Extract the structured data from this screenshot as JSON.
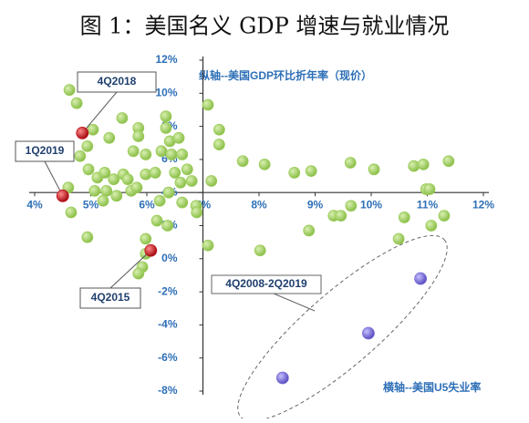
{
  "chart_data": {
    "type": "scatter",
    "title": "图 1：美国名义 GDP 增速与就业情况",
    "y_axis_label": "纵轴--美国GDP环比折年率（现价）",
    "x_axis_label": "横轴--美国U5失业率",
    "xlim": [
      4,
      12
    ],
    "ylim": [
      -8,
      12
    ],
    "xticks": [
      {
        "value": 4,
        "label": "4%"
      },
      {
        "value": 5,
        "label": "5%"
      },
      {
        "value": 6,
        "label": "6%"
      },
      {
        "value": 7,
        "label": "7%"
      },
      {
        "value": 8,
        "label": "8%"
      },
      {
        "value": 9,
        "label": "9%"
      },
      {
        "value": 10,
        "label": "10%"
      },
      {
        "value": 11,
        "label": "11%"
      },
      {
        "value": 12,
        "label": "12%"
      }
    ],
    "yticks": [
      {
        "value": -8,
        "label": "-8%"
      },
      {
        "value": -6,
        "label": "-6%"
      },
      {
        "value": -4,
        "label": "-4%"
      },
      {
        "value": -2,
        "label": "-2%"
      },
      {
        "value": 0,
        "label": "0%"
      },
      {
        "value": 2,
        "label": "2%"
      },
      {
        "value": 4,
        "label": "4%"
      },
      {
        "value": 6,
        "label": "6%"
      },
      {
        "value": 8,
        "label": "8%"
      },
      {
        "value": 10,
        "label": "10%"
      },
      {
        "value": 12,
        "label": "12%"
      }
    ],
    "series": [
      {
        "color": "#9ccc5a",
        "x": [
          4.62,
          4.75,
          5.04,
          4.94,
          4.81,
          4.6,
          4.65,
          4.94,
          4.96,
          5.12,
          5.25,
          5.41,
          5.58,
          5.66,
          5.07,
          5.28,
          5.22,
          5.46,
          5.72,
          5.82,
          5.33,
          5.56,
          5.85,
          5.85,
          5.76,
          5.98,
          6.34,
          6.34,
          6.41,
          6.26,
          6.44,
          6.57,
          6.63,
          5.98,
          6.15,
          6.5,
          6.72,
          6.6,
          6.8,
          6.39,
          6.23,
          6.63,
          6.88,
          6.89,
          6.18,
          6.37,
          5.98,
          5.98,
          5.92,
          5.85,
          7.09,
          7.29,
          7.29,
          7.15,
          7.09,
          7.71,
          8.1,
          8.63,
          8.93,
          9.63,
          10.05,
          10.76,
          10.93,
          11.38,
          10.98,
          11.04,
          9.64,
          9.33,
          9.46,
          8.89,
          8.02,
          10.59,
          11.3,
          11.07,
          10.49
        ],
        "values": [
          10.2,
          9.4,
          7.8,
          6.8,
          6.2,
          4.3,
          2.8,
          1.3,
          5.4,
          4.9,
          5.2,
          4.8,
          5.1,
          4.8,
          4.1,
          4.1,
          3.5,
          3.8,
          4.1,
          4.3,
          7.3,
          8.5,
          7.9,
          7.4,
          6.5,
          6.3,
          8.6,
          7.9,
          7.1,
          6.5,
          6.3,
          7.3,
          6.3,
          5.1,
          5.2,
          5.2,
          5.4,
          4.6,
          4.7,
          4.0,
          3.5,
          3.4,
          3.2,
          2.8,
          2.3,
          2.0,
          1.2,
          0.3,
          -0.5,
          -0.9,
          9.3,
          7.8,
          6.9,
          4.7,
          0.8,
          5.9,
          5.7,
          5.2,
          5.3,
          5.8,
          5.4,
          5.6,
          5.7,
          5.9,
          4.2,
          4.2,
          3.2,
          2.6,
          2.6,
          1.7,
          0.5,
          2.5,
          2.6,
          2.0,
          1.2
        ]
      },
      {
        "color": "#c0141b",
        "x": [
          4.85,
          4.5,
          6.07
        ],
        "values": [
          7.6,
          3.8,
          0.5
        ],
        "point_labels": [
          "4Q2018",
          "1Q2019",
          "4Q2015"
        ]
      },
      {
        "color": "#7b6fd6",
        "x": [
          10.88,
          9.95,
          8.42
        ],
        "values": [
          -1.2,
          -4.5,
          -7.2
        ],
        "group_label": "4Q2008-2Q2019"
      }
    ]
  }
}
